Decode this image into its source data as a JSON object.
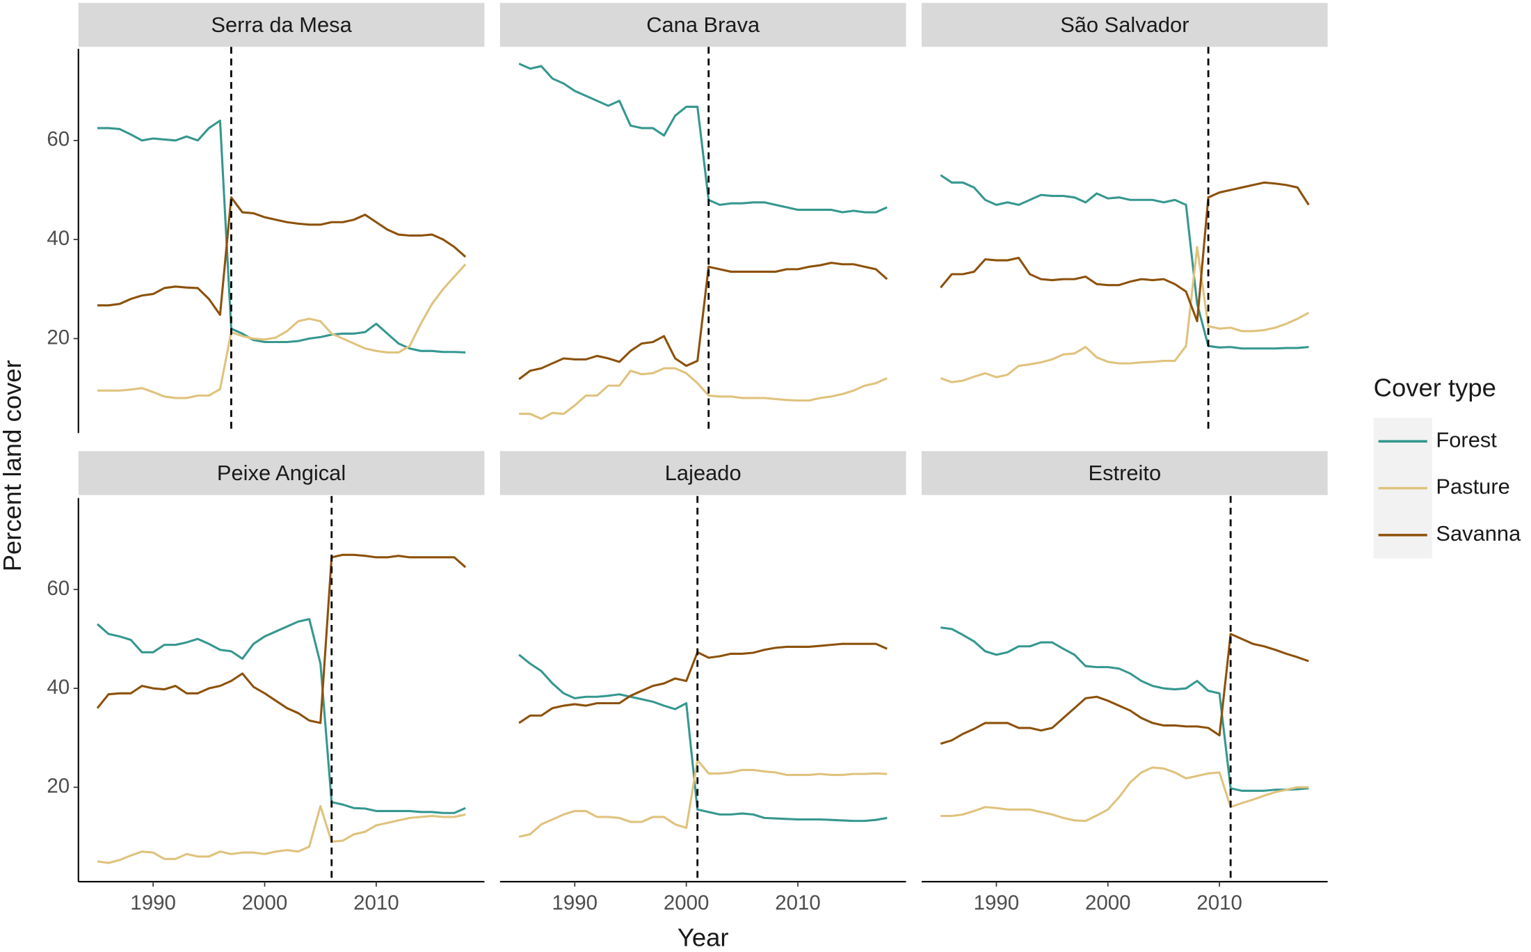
{
  "chart_data": {
    "type": "line",
    "xlabel": "Year",
    "ylabel": "Percent land cover",
    "legend_title": "Cover type",
    "x": [
      1985,
      1986,
      1987,
      1988,
      1989,
      1990,
      1991,
      1992,
      1993,
      1994,
      1995,
      1996,
      1997,
      1998,
      1999,
      2000,
      2001,
      2002,
      2003,
      2004,
      2005,
      2006,
      2007,
      2008,
      2009,
      2010,
      2011,
      2012,
      2013,
      2014,
      2015,
      2016,
      2017,
      2018
    ],
    "xlim": [
      1983.3,
      2019.7
    ],
    "xticks": [
      1990,
      2000,
      2010
    ],
    "ylim": [
      1.5,
      78.5
    ],
    "yticks": [
      20,
      40,
      60
    ],
    "series": [
      {
        "name": "Forest",
        "color": "#35978f"
      },
      {
        "name": "Pasture",
        "color": "#dfc27d"
      },
      {
        "name": "Savanna",
        "color": "#8c510a"
      }
    ],
    "panels": [
      {
        "title": "Serra da Mesa",
        "vline": 1997,
        "series": [
          {
            "values": [
              62.5,
              62.5,
              62.3,
              61.2,
              60,
              60.4,
              60.2,
              60,
              60.8,
              60,
              62.5,
              64,
              22,
              21,
              19.7,
              19.3,
              19.3,
              19.3,
              19.5,
              20,
              20.3,
              20.8,
              21,
              21,
              21.3,
              23,
              21,
              19,
              18,
              17.5,
              17.5,
              17.3,
              17.3,
              17.2
            ]
          },
          {
            "values": [
              9.5,
              9.5,
              9.5,
              9.7,
              10,
              9.2,
              8.3,
              8,
              8,
              8.5,
              8.5,
              9.8,
              21.3,
              20.5,
              20,
              19.8,
              20.2,
              21.5,
              23.5,
              24,
              23.5,
              21,
              20,
              19,
              18,
              17.5,
              17.2,
              17.2,
              18.5,
              23,
              27,
              30,
              32.5,
              35
            ]
          },
          {
            "values": [
              26.7,
              26.7,
              27,
              28,
              28.7,
              29,
              30.2,
              30.5,
              30.3,
              30.2,
              28,
              24.8,
              48.5,
              45.5,
              45.3,
              44.5,
              44,
              43.5,
              43.2,
              43,
              43,
              43.5,
              43.5,
              44,
              45,
              43.5,
              42,
              41,
              40.8,
              40.8,
              41,
              40,
              38.5,
              36.5
            ]
          }
        ]
      },
      {
        "title": "Cana Brava",
        "vline": 2002,
        "series": [
          {
            "values": [
              75.5,
              74.5,
              75,
              72.5,
              71.5,
              70,
              69,
              68,
              67,
              68,
              63,
              62.5,
              62.5,
              61,
              65,
              66.8,
              66.8,
              48,
              47,
              47.3,
              47.3,
              47.5,
              47.5,
              47,
              46.5,
              46,
              46,
              46,
              46,
              45.5,
              45.8,
              45.5,
              45.5,
              46.5
            ]
          },
          {
            "values": [
              4.8,
              4.8,
              3.8,
              5,
              4.8,
              6.5,
              8.5,
              8.5,
              10.5,
              10.5,
              13.5,
              12.8,
              13,
              14,
              14,
              13,
              11,
              8.5,
              8.3,
              8.3,
              8,
              8,
              8,
              7.8,
              7.6,
              7.5,
              7.5,
              8,
              8.3,
              8.8,
              9.5,
              10.5,
              11,
              12
            ]
          },
          {
            "values": [
              11.8,
              13.5,
              14,
              15,
              16,
              15.8,
              15.8,
              16.5,
              16,
              15.3,
              17.5,
              19,
              19.3,
              20.5,
              16,
              14.5,
              15.5,
              34.5,
              34,
              33.5,
              33.5,
              33.5,
              33.5,
              33.5,
              34,
              34,
              34.5,
              34.8,
              35.3,
              35,
              35,
              34.5,
              34,
              32
            ]
          }
        ]
      },
      {
        "title": "São Salvador",
        "vline": 2009,
        "series": [
          {
            "values": [
              53,
              51.5,
              51.5,
              50.5,
              48,
              47,
              47.5,
              47,
              48,
              49,
              48.8,
              48.8,
              48.5,
              47.5,
              49.3,
              48.3,
              48.5,
              48,
              48,
              48,
              47.5,
              48,
              47,
              27,
              18.5,
              18.2,
              18.3,
              18,
              18,
              18,
              18,
              18.1,
              18.1,
              18.3
            ]
          },
          {
            "values": [
              12,
              11.2,
              11.5,
              12.3,
              13,
              12.2,
              12.7,
              14.5,
              14.8,
              15.2,
              15.8,
              16.8,
              17,
              18.3,
              16.2,
              15.3,
              15,
              15,
              15.2,
              15.3,
              15.5,
              15.5,
              18.5,
              38.5,
              22.5,
              22,
              22.2,
              21.5,
              21.5,
              21.7,
              22.2,
              23,
              24,
              25.2
            ]
          },
          {
            "values": [
              30.3,
              33,
              33,
              33.5,
              36,
              35.8,
              35.8,
              36.3,
              33,
              32,
              31.8,
              32,
              32,
              32.5,
              31,
              30.8,
              30.8,
              31.5,
              32,
              31.8,
              32,
              31,
              29.5,
              23.5,
              48.5,
              49.5,
              50,
              50.5,
              51,
              51.5,
              51.3,
              51,
              50.5,
              47
            ]
          }
        ]
      },
      {
        "title": "Peixe Angical",
        "vline": 2006,
        "series": [
          {
            "values": [
              53,
              51,
              50.5,
              49.8,
              47.3,
              47.3,
              48.8,
              48.8,
              49.3,
              50,
              49,
              47.8,
              47.5,
              46,
              49,
              50.5,
              51.5,
              52.5,
              53.5,
              54,
              45,
              17,
              16.5,
              15.8,
              15.7,
              15.2,
              15.2,
              15.2,
              15.2,
              15,
              15,
              14.8,
              14.8,
              15.8
            ]
          },
          {
            "values": [
              5,
              4.7,
              5.3,
              6.2,
              7,
              6.8,
              5.5,
              5.5,
              6.5,
              6,
              6,
              7,
              6.5,
              6.8,
              6.8,
              6.5,
              7,
              7.3,
              7,
              8,
              16.2,
              9,
              9.2,
              10.5,
              11,
              12.3,
              12.8,
              13.3,
              13.8,
              14,
              14.2,
              14,
              14,
              14.5
            ]
          },
          {
            "values": [
              36,
              38.8,
              39,
              39,
              40.5,
              40,
              39.8,
              40.5,
              39,
              39,
              40,
              40.5,
              41.5,
              43,
              40.3,
              39,
              37.5,
              36,
              35,
              33.5,
              33,
              66.5,
              67,
              67,
              66.8,
              66.5,
              66.5,
              66.8,
              66.5,
              66.5,
              66.5,
              66.5,
              66.5,
              64.5
            ]
          }
        ]
      },
      {
        "title": "Lajeado",
        "vline": 2001,
        "series": [
          {
            "values": [
              46.8,
              45,
              43.5,
              41,
              39,
              38,
              38.3,
              38.3,
              38.5,
              38.8,
              38.3,
              37.8,
              37.3,
              36.5,
              35.8,
              37,
              15.5,
              15,
              14.5,
              14.5,
              14.7,
              14.5,
              13.8,
              13.7,
              13.6,
              13.5,
              13.5,
              13.5,
              13.4,
              13.3,
              13.2,
              13.2,
              13.4,
              13.8
            ]
          },
          {
            "values": [
              10,
              10.5,
              12.5,
              13.5,
              14.5,
              15.2,
              15.2,
              14,
              14,
              13.8,
              13,
              13,
              14,
              14,
              12.5,
              11.8,
              25.5,
              22.8,
              22.8,
              23,
              23.5,
              23.5,
              23.2,
              23,
              22.5,
              22.5,
              22.5,
              22.7,
              22.5,
              22.5,
              22.7,
              22.7,
              22.8,
              22.7
            ]
          },
          {
            "values": [
              33,
              34.5,
              34.5,
              36,
              36.5,
              36.8,
              36.5,
              37,
              37,
              37,
              38.5,
              39.5,
              40.5,
              41,
              42,
              41.5,
              47.3,
              46.2,
              46.5,
              47,
              47,
              47.2,
              47.8,
              48.2,
              48.4,
              48.4,
              48.4,
              48.6,
              48.8,
              49,
              49,
              49,
              49,
              48
            ]
          }
        ]
      },
      {
        "title": "Estreito",
        "vline": 2011,
        "series": [
          {
            "values": [
              52.3,
              52,
              50.8,
              49.5,
              47.5,
              46.8,
              47.3,
              48.5,
              48.5,
              49.3,
              49.3,
              48,
              46.8,
              44.5,
              44.3,
              44.3,
              44,
              43,
              41.5,
              40.5,
              40,
              39.8,
              40,
              41.5,
              39.5,
              39,
              19.8,
              19.3,
              19.3,
              19.3,
              19.5,
              19.5,
              19.6,
              19.8
            ]
          },
          {
            "values": [
              14.2,
              14.2,
              14.5,
              15.2,
              16,
              15.8,
              15.5,
              15.5,
              15.5,
              15,
              14.5,
              13.8,
              13.3,
              13.2,
              14.3,
              15.5,
              18,
              21,
              23,
              24,
              23.8,
              23,
              21.8,
              22.3,
              22.8,
              23,
              16,
              16.8,
              17.5,
              18.3,
              19,
              19.5,
              20,
              20
            ]
          },
          {
            "values": [
              28.8,
              29.5,
              30.8,
              31.8,
              33,
              33,
              33,
              32,
              32,
              31.5,
              32,
              34,
              36,
              38,
              38.3,
              37.5,
              36.5,
              35.5,
              34,
              33,
              32.5,
              32.5,
              32.3,
              32.3,
              32,
              30.5,
              51,
              50,
              49,
              48.5,
              47.8,
              47,
              46.3,
              45.5
            ]
          }
        ]
      }
    ]
  }
}
